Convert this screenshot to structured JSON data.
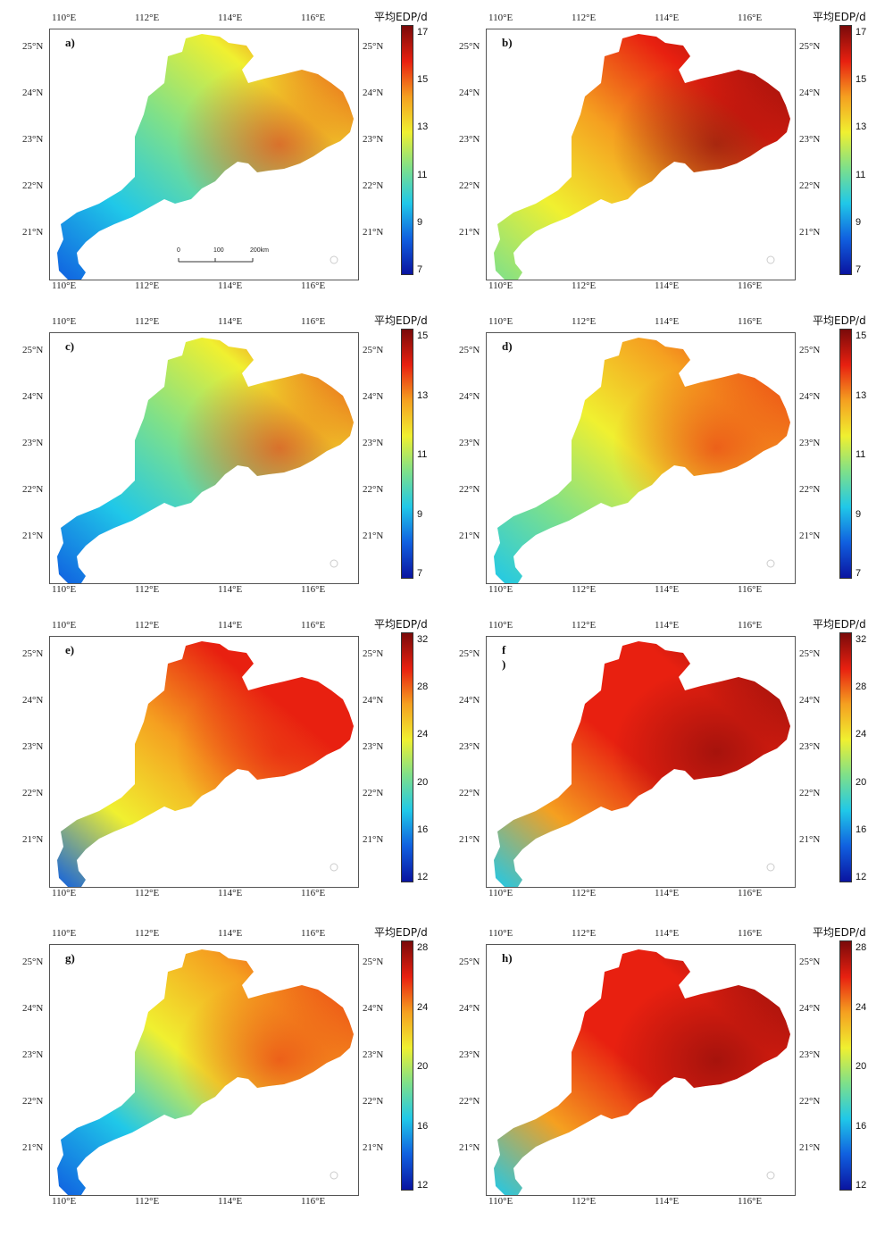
{
  "figure": {
    "panels": [
      {
        "id": "a",
        "label": "a)",
        "scale": "A",
        "palette": "cool-dominant",
        "lon_labels": [
          "110°E",
          "112°E",
          "114°E",
          "116°E"
        ],
        "lat_labels": [
          "25°N",
          "24°N",
          "23°N",
          "22°N",
          "21°N"
        ],
        "has_scalebar": true
      },
      {
        "id": "b",
        "label": "b)",
        "scale": "A",
        "palette": "warm-dominant",
        "lon_labels": [
          "110°E",
          "112°E",
          "114°E",
          "116°E"
        ],
        "lat_labels": [
          "25°N",
          "24°N",
          "23°N",
          "22°N",
          "21°N"
        ],
        "has_scalebar": false
      },
      {
        "id": "c",
        "label": "c)",
        "scale": "B",
        "palette": "cool-dominant",
        "lon_labels": [
          "110°E",
          "112°E",
          "114°E",
          "116°E"
        ],
        "lat_labels": [
          "25°N",
          "24°N",
          "23°N",
          "22°N",
          "21°N"
        ],
        "has_scalebar": false
      },
      {
        "id": "d",
        "label": "d)",
        "scale": "B",
        "palette": "mid",
        "lon_labels": [
          "110°E",
          "112°E",
          "114°E",
          "116°E"
        ],
        "lat_labels": [
          "25°N",
          "24°N",
          "23°N",
          "22°N",
          "21°N"
        ],
        "has_scalebar": false
      },
      {
        "id": "e",
        "label": "e)",
        "scale": "C",
        "palette": "orange",
        "lon_labels": [
          "110°E",
          "112°E",
          "114°E",
          "116°E"
        ],
        "lat_labels": [
          "25°N",
          "24°N",
          "23°N",
          "22°N",
          "21°N"
        ],
        "has_scalebar": false
      },
      {
        "id": "f",
        "label": "f )",
        "scale": "C",
        "palette": "red",
        "lon_labels": [
          "110°E",
          "112°E",
          "114°E",
          "116°E"
        ],
        "lat_labels": [
          "25°N",
          "24°N",
          "23°N",
          "22°N",
          "21°N"
        ],
        "has_scalebar": false
      },
      {
        "id": "g",
        "label": "g)",
        "scale": "D",
        "palette": "yellow-orange",
        "lon_labels": [
          "110°E",
          "112°E",
          "114°E",
          "116°E"
        ],
        "lat_labels": [
          "25°N",
          "24°N",
          "23°N",
          "22°N",
          "21°N"
        ],
        "has_scalebar": false
      },
      {
        "id": "h",
        "label": "h)",
        "scale": "D",
        "palette": "red",
        "lon_labels": [
          "110°E",
          "112°E",
          "114°E",
          "116°E"
        ],
        "lat_labels": [
          "25°N",
          "24°N",
          "23°N",
          "22°N",
          "21°N"
        ],
        "has_scalebar": false
      }
    ],
    "colorbars": {
      "A": {
        "title": "平均EDP/d",
        "ticks": [
          "17",
          "15",
          "13",
          "11",
          "9",
          "7"
        ]
      },
      "B": {
        "title": "平均EDP/d",
        "ticks": [
          "15",
          "13",
          "11",
          "9",
          "7"
        ]
      },
      "C": {
        "title": "平均EDP/d",
        "ticks": [
          "32",
          "28",
          "24",
          "20",
          "16",
          "12"
        ]
      },
      "D": {
        "title": "平均EDP/d",
        "ticks": [
          "28",
          "24",
          "20",
          "16",
          "12"
        ]
      }
    },
    "scalebar": {
      "ticks": [
        "0",
        "100",
        "200km"
      ]
    },
    "colors": {
      "dark_blue": "#0a14a0",
      "blue": "#1060e0",
      "cyan": "#20c8e8",
      "green": "#7ee08a",
      "yellow": "#f0f030",
      "orange": "#f5a020",
      "red": "#e82010",
      "dark_red": "#7a0a0a"
    }
  }
}
